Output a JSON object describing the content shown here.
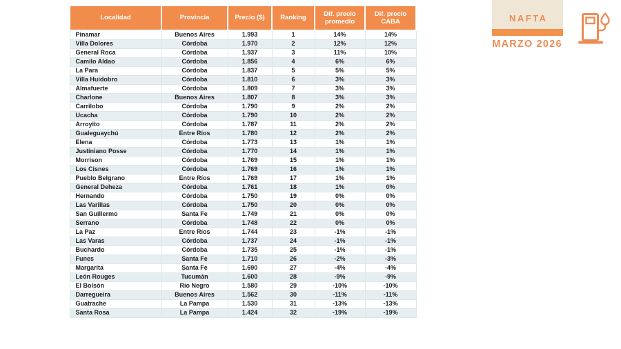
{
  "panel": {
    "fuel_type": "NAFTA",
    "period": "MARZO 2026"
  },
  "colors": {
    "header_orange": "#F28C4D",
    "bar_orange": "#F3924D",
    "badge_beige": "#EFE6D6",
    "accent_text_orange": "#EE8B52",
    "alt_row_blue": "#E7EEF2",
    "cell_border": "#DCE7EB",
    "body_text": "#1B1B1B"
  },
  "chart_data": {
    "type": "table",
    "title": "NAFTA MARZO 2026",
    "columns": [
      "Localidad",
      "Provincia",
      "Precio ($)",
      "Ranking",
      "Dif. precio promedio",
      "Dif. precio CABA"
    ],
    "rows": [
      [
        "Pinamar",
        "Buenos Aires",
        "1.993",
        "1",
        "14%",
        "14%"
      ],
      [
        "Villa Dolores",
        "Córdoba",
        "1.970",
        "2",
        "12%",
        "12%"
      ],
      [
        "General Roca",
        "Córdoba",
        "1.937",
        "3",
        "11%",
        "10%"
      ],
      [
        "Camilo Aldao",
        "Córdoba",
        "1.856",
        "4",
        "6%",
        "6%"
      ],
      [
        "La Para",
        "Córdoba",
        "1.837",
        "5",
        "5%",
        "5%"
      ],
      [
        "Villa Huidobro",
        "Córdoba",
        "1.810",
        "6",
        "3%",
        "3%"
      ],
      [
        "Almafuerte",
        "Córdoba",
        "1.809",
        "7",
        "3%",
        "3%"
      ],
      [
        "Charlone",
        "Buenos Aires",
        "1.807",
        "8",
        "3%",
        "3%"
      ],
      [
        "Carrilobo",
        "Córdoba",
        "1.790",
        "9",
        "2%",
        "2%"
      ],
      [
        "Ucacha",
        "Córdoba",
        "1.790",
        "10",
        "2%",
        "2%"
      ],
      [
        "Arroyito",
        "Córdoba",
        "1.787",
        "11",
        "2%",
        "2%"
      ],
      [
        "Gualeguaychú",
        "Entre Ríos",
        "1.780",
        "12",
        "2%",
        "2%"
      ],
      [
        "Elena",
        "Córdoba",
        "1.773",
        "13",
        "1%",
        "1%"
      ],
      [
        "Justiniano Posse",
        "Córdoba",
        "1.770",
        "14",
        "1%",
        "1%"
      ],
      [
        "Morrison",
        "Córdoba",
        "1.769",
        "15",
        "1%",
        "1%"
      ],
      [
        "Los Cisnes",
        "Córdoba",
        "1.769",
        "16",
        "1%",
        "1%"
      ],
      [
        "Pueblo Belgrano",
        "Entre Ríos",
        "1.769",
        "17",
        "1%",
        "1%"
      ],
      [
        "General Deheza",
        "Córdoba",
        "1.761",
        "18",
        "1%",
        "0%"
      ],
      [
        "Hernando",
        "Córdoba",
        "1.750",
        "19",
        "0%",
        "0%"
      ],
      [
        "Las Varillas",
        "Córdoba",
        "1.750",
        "20",
        "0%",
        "0%"
      ],
      [
        "San Guillermo",
        "Santa Fe",
        "1.749",
        "21",
        "0%",
        "0%"
      ],
      [
        "Serrano",
        "Córdoba",
        "1.748",
        "22",
        "0%",
        "0%"
      ],
      [
        "La Paz",
        "Entre Ríos",
        "1.744",
        "23",
        "-1%",
        "-1%"
      ],
      [
        "Las Varas",
        "Córdoba",
        "1.737",
        "24",
        "-1%",
        "-1%"
      ],
      [
        "Buchardo",
        "Córdoba",
        "1.735",
        "25",
        "-1%",
        "-1%"
      ],
      [
        "Funes",
        "Santa Fe",
        "1.710",
        "26",
        "-2%",
        "-3%"
      ],
      [
        "Margarita",
        "Santa Fe",
        "1.690",
        "27",
        "-4%",
        "-4%"
      ],
      [
        "León Rouges",
        "Tucumán",
        "1.600",
        "28",
        "-9%",
        "-9%"
      ],
      [
        "El Bolsón",
        "Río Negro",
        "1.580",
        "29",
        "-10%",
        "-10%"
      ],
      [
        "Darregueira",
        "Buenos Aires",
        "1.562",
        "30",
        "-11%",
        "-11%"
      ],
      [
        "Guatrache",
        "La Pampa",
        "1.530",
        "31",
        "-13%",
        "-13%"
      ],
      [
        "Santa Rosa",
        "La Pampa",
        "1.424",
        "32",
        "-19%",
        "-19%"
      ]
    ]
  }
}
